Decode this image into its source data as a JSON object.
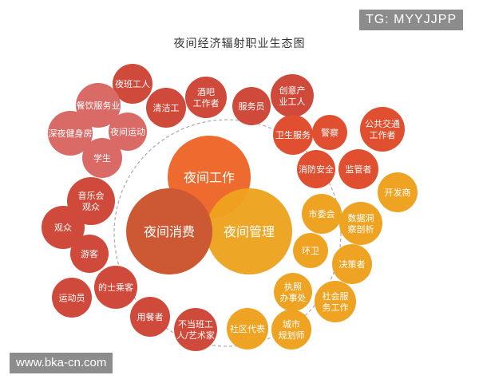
{
  "title": "夜间经济辐射职业生态图",
  "watermark_top": "TG: MYYJJPP",
  "watermark_bottom": "www.bka-cn.com",
  "colors": {
    "work": "#ef6a2e",
    "consume": "#cd5834",
    "manage": "#eda21e",
    "leftRed": "#cf4a3a",
    "leftPink": "#d96a66",
    "rightOrange": "#ef7a2a",
    "rightRed": "#e04f30",
    "gold": "#eea422"
  },
  "hubs": [
    {
      "key": "work",
      "label": "夜间工作"
    },
    {
      "key": "consume",
      "label": "夜间消费"
    },
    {
      "key": "manage",
      "label": "夜间管理"
    }
  ],
  "nodes": [
    {
      "label": "夜班工人",
      "group": "leftRed"
    },
    {
      "label": "餐饮服务业",
      "group": "leftPink"
    },
    {
      "label": "清洁工",
      "group": "leftRed"
    },
    {
      "label": "酒吧\n工作者",
      "group": "leftRed"
    },
    {
      "label": "服务员",
      "group": "leftRed"
    },
    {
      "label": "创意产\n业工人",
      "group": "leftRed"
    },
    {
      "label": "深夜健身房",
      "group": "leftPink"
    },
    {
      "label": "夜间运动",
      "group": "leftPink"
    },
    {
      "label": "学生",
      "group": "leftPink"
    },
    {
      "label": "卫生服务",
      "group": "rightRed"
    },
    {
      "label": "警察",
      "group": "rightRed"
    },
    {
      "label": "公共交通\n工作者",
      "group": "rightRed"
    },
    {
      "label": "消防安全",
      "group": "rightRed"
    },
    {
      "label": "监管者",
      "group": "rightRed"
    },
    {
      "label": "开发商",
      "group": "gold"
    },
    {
      "label": "音乐会\n观众",
      "group": "leftRed"
    },
    {
      "label": "市委会",
      "group": "gold"
    },
    {
      "label": "数据洞\n察剖析",
      "group": "gold"
    },
    {
      "label": "观众",
      "group": "leftRed"
    },
    {
      "label": "游客",
      "group": "leftRed"
    },
    {
      "label": "环卫",
      "group": "gold"
    },
    {
      "label": "决策者",
      "group": "gold"
    },
    {
      "label": "运动员",
      "group": "leftRed"
    },
    {
      "label": "的士乘客",
      "group": "leftRed"
    },
    {
      "label": "执照\n办事处",
      "group": "gold"
    },
    {
      "label": "社会服\n务工作",
      "group": "gold"
    },
    {
      "label": "用餐者",
      "group": "leftRed"
    },
    {
      "label": "不当班工\n人/艺术家",
      "group": "leftRed"
    },
    {
      "label": "社区代表",
      "group": "gold"
    },
    {
      "label": "城市\n规划师",
      "group": "gold"
    }
  ]
}
